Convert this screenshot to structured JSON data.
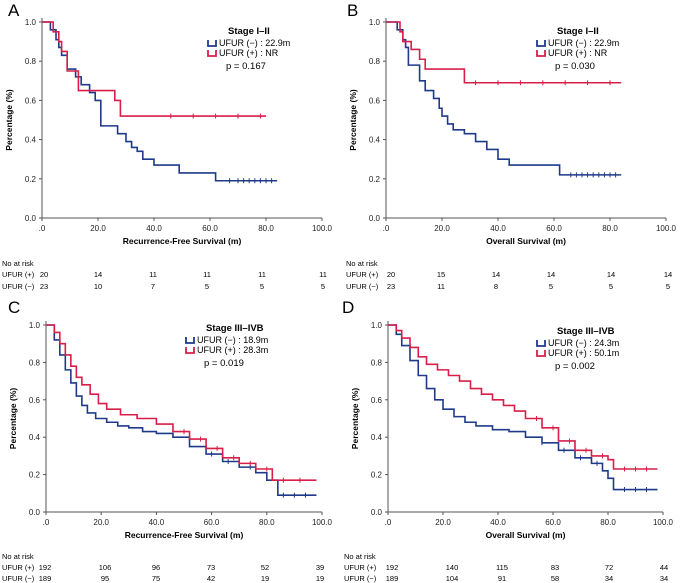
{
  "colors": {
    "neg": "#1f3a8a",
    "pos": "#d81e49",
    "axis": "#555555",
    "text": "#000000"
  },
  "chart_data": [
    {
      "type": "line",
      "panel": "A",
      "stage": "Stage I–II",
      "xlabel": "Recurrence-Free Survival (m)",
      "ylabel": "Percentage (%)",
      "xlim": [
        0,
        100
      ],
      "ylim": [
        0,
        1
      ],
      "xticks": [
        ".0",
        "20.0",
        "40.0",
        "60.0",
        "80.0",
        "100.0"
      ],
      "yticks": [
        "0.0",
        "0.2",
        "0.4",
        "0.6",
        "0.8",
        "1.0"
      ],
      "series": [
        {
          "name": "UFUR (−)",
          "legend": "UFUR (−) : 22.9m",
          "color_key": "neg",
          "x": [
            0,
            3,
            5,
            6,
            7,
            9,
            12,
            14,
            17,
            19,
            21,
            24,
            27,
            29,
            30,
            32,
            34,
            36,
            37,
            40,
            43,
            49,
            62,
            84
          ],
          "y": [
            1.0,
            0.96,
            0.91,
            0.87,
            0.83,
            0.76,
            0.72,
            0.68,
            0.64,
            0.6,
            0.47,
            0.47,
            0.43,
            0.43,
            0.39,
            0.36,
            0.34,
            0.3,
            0.3,
            0.27,
            0.27,
            0.23,
            0.19,
            0.19
          ],
          "censor_x": [
            67,
            70,
            72,
            74,
            76,
            78,
            80,
            82
          ]
        },
        {
          "name": "UFUR (+)",
          "legend": "UFUR (+) : NR",
          "color_key": "pos",
          "x": [
            0,
            4,
            6,
            7,
            9,
            13,
            26,
            28,
            80
          ],
          "y": [
            1.0,
            0.95,
            0.9,
            0.85,
            0.75,
            0.65,
            0.6,
            0.52,
            0.52
          ],
          "censor_x": [
            46,
            54,
            62,
            70,
            78
          ]
        }
      ],
      "annotation": "p = 0.167",
      "risk_table": {
        "title": "No at risk",
        "rows": [
          {
            "label": "UFUR (+)",
            "values": [
              "20",
              "14",
              "11",
              "11",
              "11",
              "11"
            ]
          },
          {
            "label": "UFUR (−)",
            "values": [
              "23",
              "10",
              "7",
              "5",
              "5",
              "5"
            ]
          }
        ]
      }
    },
    {
      "type": "line",
      "panel": "B",
      "stage": "Stage I–II",
      "xlabel": "Overall Survival (m)",
      "ylabel": "Percentage (%)",
      "xlim": [
        0,
        100
      ],
      "ylim": [
        0,
        1
      ],
      "xticks": [
        ".0",
        "20.0",
        "40.0",
        "60.0",
        "80.0",
        "100.0"
      ],
      "yticks": [
        "0.0",
        "0.2",
        "0.4",
        "0.6",
        "0.8",
        "1.0"
      ],
      "series": [
        {
          "name": "UFUR (−)",
          "legend": "UFUR (−) : 22.9m",
          "color_key": "neg",
          "x": [
            0,
            4,
            6,
            7,
            8,
            12,
            14,
            17,
            19,
            20,
            22,
            24,
            28,
            32,
            36,
            40,
            44,
            62,
            84
          ],
          "y": [
            1.0,
            0.96,
            0.91,
            0.87,
            0.78,
            0.7,
            0.65,
            0.61,
            0.56,
            0.52,
            0.48,
            0.45,
            0.43,
            0.39,
            0.35,
            0.3,
            0.27,
            0.22,
            0.22
          ],
          "censor_x": [
            66,
            68,
            70,
            72,
            74,
            76,
            78,
            80,
            82
          ]
        },
        {
          "name": "UFUR (+)",
          "legend": "UFUR (+) : NR",
          "color_key": "pos",
          "x": [
            0,
            5,
            6,
            9,
            12,
            14,
            28,
            84
          ],
          "y": [
            1.0,
            0.95,
            0.9,
            0.86,
            0.81,
            0.76,
            0.69,
            0.69
          ],
          "censor_x": [
            32,
            40,
            48,
            56,
            64,
            72,
            80
          ]
        }
      ],
      "annotation": "p = 0.030",
      "risk_table": {
        "title": "No at risk",
        "rows": [
          {
            "label": "UFUR (+)",
            "values": [
              "20",
              "15",
              "14",
              "14",
              "14",
              "14"
            ]
          },
          {
            "label": "UFUR (−)",
            "values": [
              "23",
              "11",
              "8",
              "5",
              "5",
              "5"
            ]
          }
        ]
      }
    },
    {
      "type": "line",
      "panel": "C",
      "stage": "Stage III–IVB",
      "xlabel": "Recurrence-Free Survival (m)",
      "ylabel": "Percentage (%)",
      "xlim": [
        0,
        100
      ],
      "ylim": [
        0,
        1
      ],
      "xticks": [
        ".0",
        "20.0",
        "40.0",
        "60.0",
        "80.0",
        "100.0"
      ],
      "yticks": [
        "0.0",
        "0.2",
        "0.4",
        "0.6",
        "0.8",
        "1.0"
      ],
      "series": [
        {
          "name": "UFUR (−)",
          "legend": "UFUR (−) : 18.9m",
          "color_key": "neg",
          "x": [
            0,
            3,
            5,
            7,
            9,
            11,
            13,
            15,
            18,
            22,
            26,
            30,
            35,
            40,
            46,
            52,
            58,
            64,
            70,
            76,
            80,
            84,
            98
          ],
          "y": [
            1.0,
            0.92,
            0.84,
            0.76,
            0.69,
            0.62,
            0.57,
            0.53,
            0.5,
            0.48,
            0.46,
            0.45,
            0.43,
            0.42,
            0.4,
            0.35,
            0.31,
            0.27,
            0.24,
            0.21,
            0.17,
            0.09,
            0.09
          ],
          "censor_x": [
            60,
            66,
            74,
            86,
            90,
            94
          ]
        },
        {
          "name": "UFUR (+)",
          "legend": "UFUR (+) : 28.3m",
          "color_key": "pos",
          "x": [
            0,
            3,
            5,
            7,
            9,
            11,
            13,
            16,
            19,
            22,
            27,
            33,
            40,
            46,
            52,
            58,
            64,
            70,
            76,
            82,
            98
          ],
          "y": [
            1.0,
            0.96,
            0.9,
            0.84,
            0.78,
            0.72,
            0.68,
            0.63,
            0.58,
            0.55,
            0.52,
            0.5,
            0.47,
            0.43,
            0.39,
            0.34,
            0.29,
            0.26,
            0.23,
            0.17,
            0.17
          ],
          "censor_x": [
            50,
            56,
            62,
            68,
            74,
            80,
            86,
            92
          ]
        }
      ],
      "annotation": "p = 0.019",
      "risk_table": {
        "title": "No at risk",
        "rows": [
          {
            "label": "UFUR (+)",
            "values": [
              "192",
              "106",
              "96",
              "73",
              "52",
              "39"
            ]
          },
          {
            "label": "UFUR (−)",
            "values": [
              "189",
              "95",
              "75",
              "42",
              "19",
              "19"
            ]
          }
        ]
      }
    },
    {
      "type": "line",
      "panel": "D",
      "stage": "Stage III–IVB",
      "xlabel": "Overall Survival (m)",
      "ylabel": "Percentage (%)",
      "xlim": [
        0,
        100
      ],
      "ylim": [
        0,
        1
      ],
      "xticks": [
        ".0",
        "20.0",
        "40.0",
        "60.0",
        "80.0",
        "100.0"
      ],
      "yticks": [
        "0.0",
        "0.2",
        "0.4",
        "0.6",
        "0.8",
        "1.0"
      ],
      "series": [
        {
          "name": "UFUR (−)",
          "legend": "UFUR (−) : 24.3m",
          "color_key": "neg",
          "x": [
            0,
            3,
            5,
            8,
            11,
            14,
            17,
            20,
            24,
            28,
            32,
            38,
            44,
            50,
            56,
            62,
            68,
            74,
            78,
            80,
            82,
            98
          ],
          "y": [
            1.0,
            0.95,
            0.89,
            0.81,
            0.73,
            0.66,
            0.6,
            0.55,
            0.51,
            0.48,
            0.46,
            0.44,
            0.43,
            0.4,
            0.37,
            0.33,
            0.29,
            0.26,
            0.22,
            0.18,
            0.12,
            0.12
          ],
          "censor_x": [
            56,
            64,
            70,
            76,
            86,
            90,
            94
          ]
        },
        {
          "name": "UFUR (+)",
          "legend": "UFUR (+) : 50.1m",
          "color_key": "pos",
          "x": [
            0,
            3,
            5,
            8,
            11,
            14,
            18,
            22,
            26,
            30,
            34,
            38,
            42,
            46,
            50,
            56,
            62,
            68,
            74,
            80,
            82,
            98
          ],
          "y": [
            1.0,
            0.97,
            0.93,
            0.88,
            0.83,
            0.79,
            0.76,
            0.73,
            0.7,
            0.66,
            0.63,
            0.6,
            0.57,
            0.54,
            0.5,
            0.45,
            0.38,
            0.33,
            0.3,
            0.28,
            0.23,
            0.23
          ],
          "censor_x": [
            54,
            60,
            66,
            72,
            78,
            86,
            90,
            94
          ]
        }
      ],
      "annotation": "p = 0.002",
      "risk_table": {
        "title": "No at risk",
        "rows": [
          {
            "label": "UFUR (+)",
            "values": [
              "192",
              "140",
              "115",
              "83",
              "72",
              "44"
            ]
          },
          {
            "label": "UFUR (−)",
            "values": [
              "189",
              "104",
              "91",
              "58",
              "34",
              "34"
            ]
          }
        ]
      }
    }
  ]
}
